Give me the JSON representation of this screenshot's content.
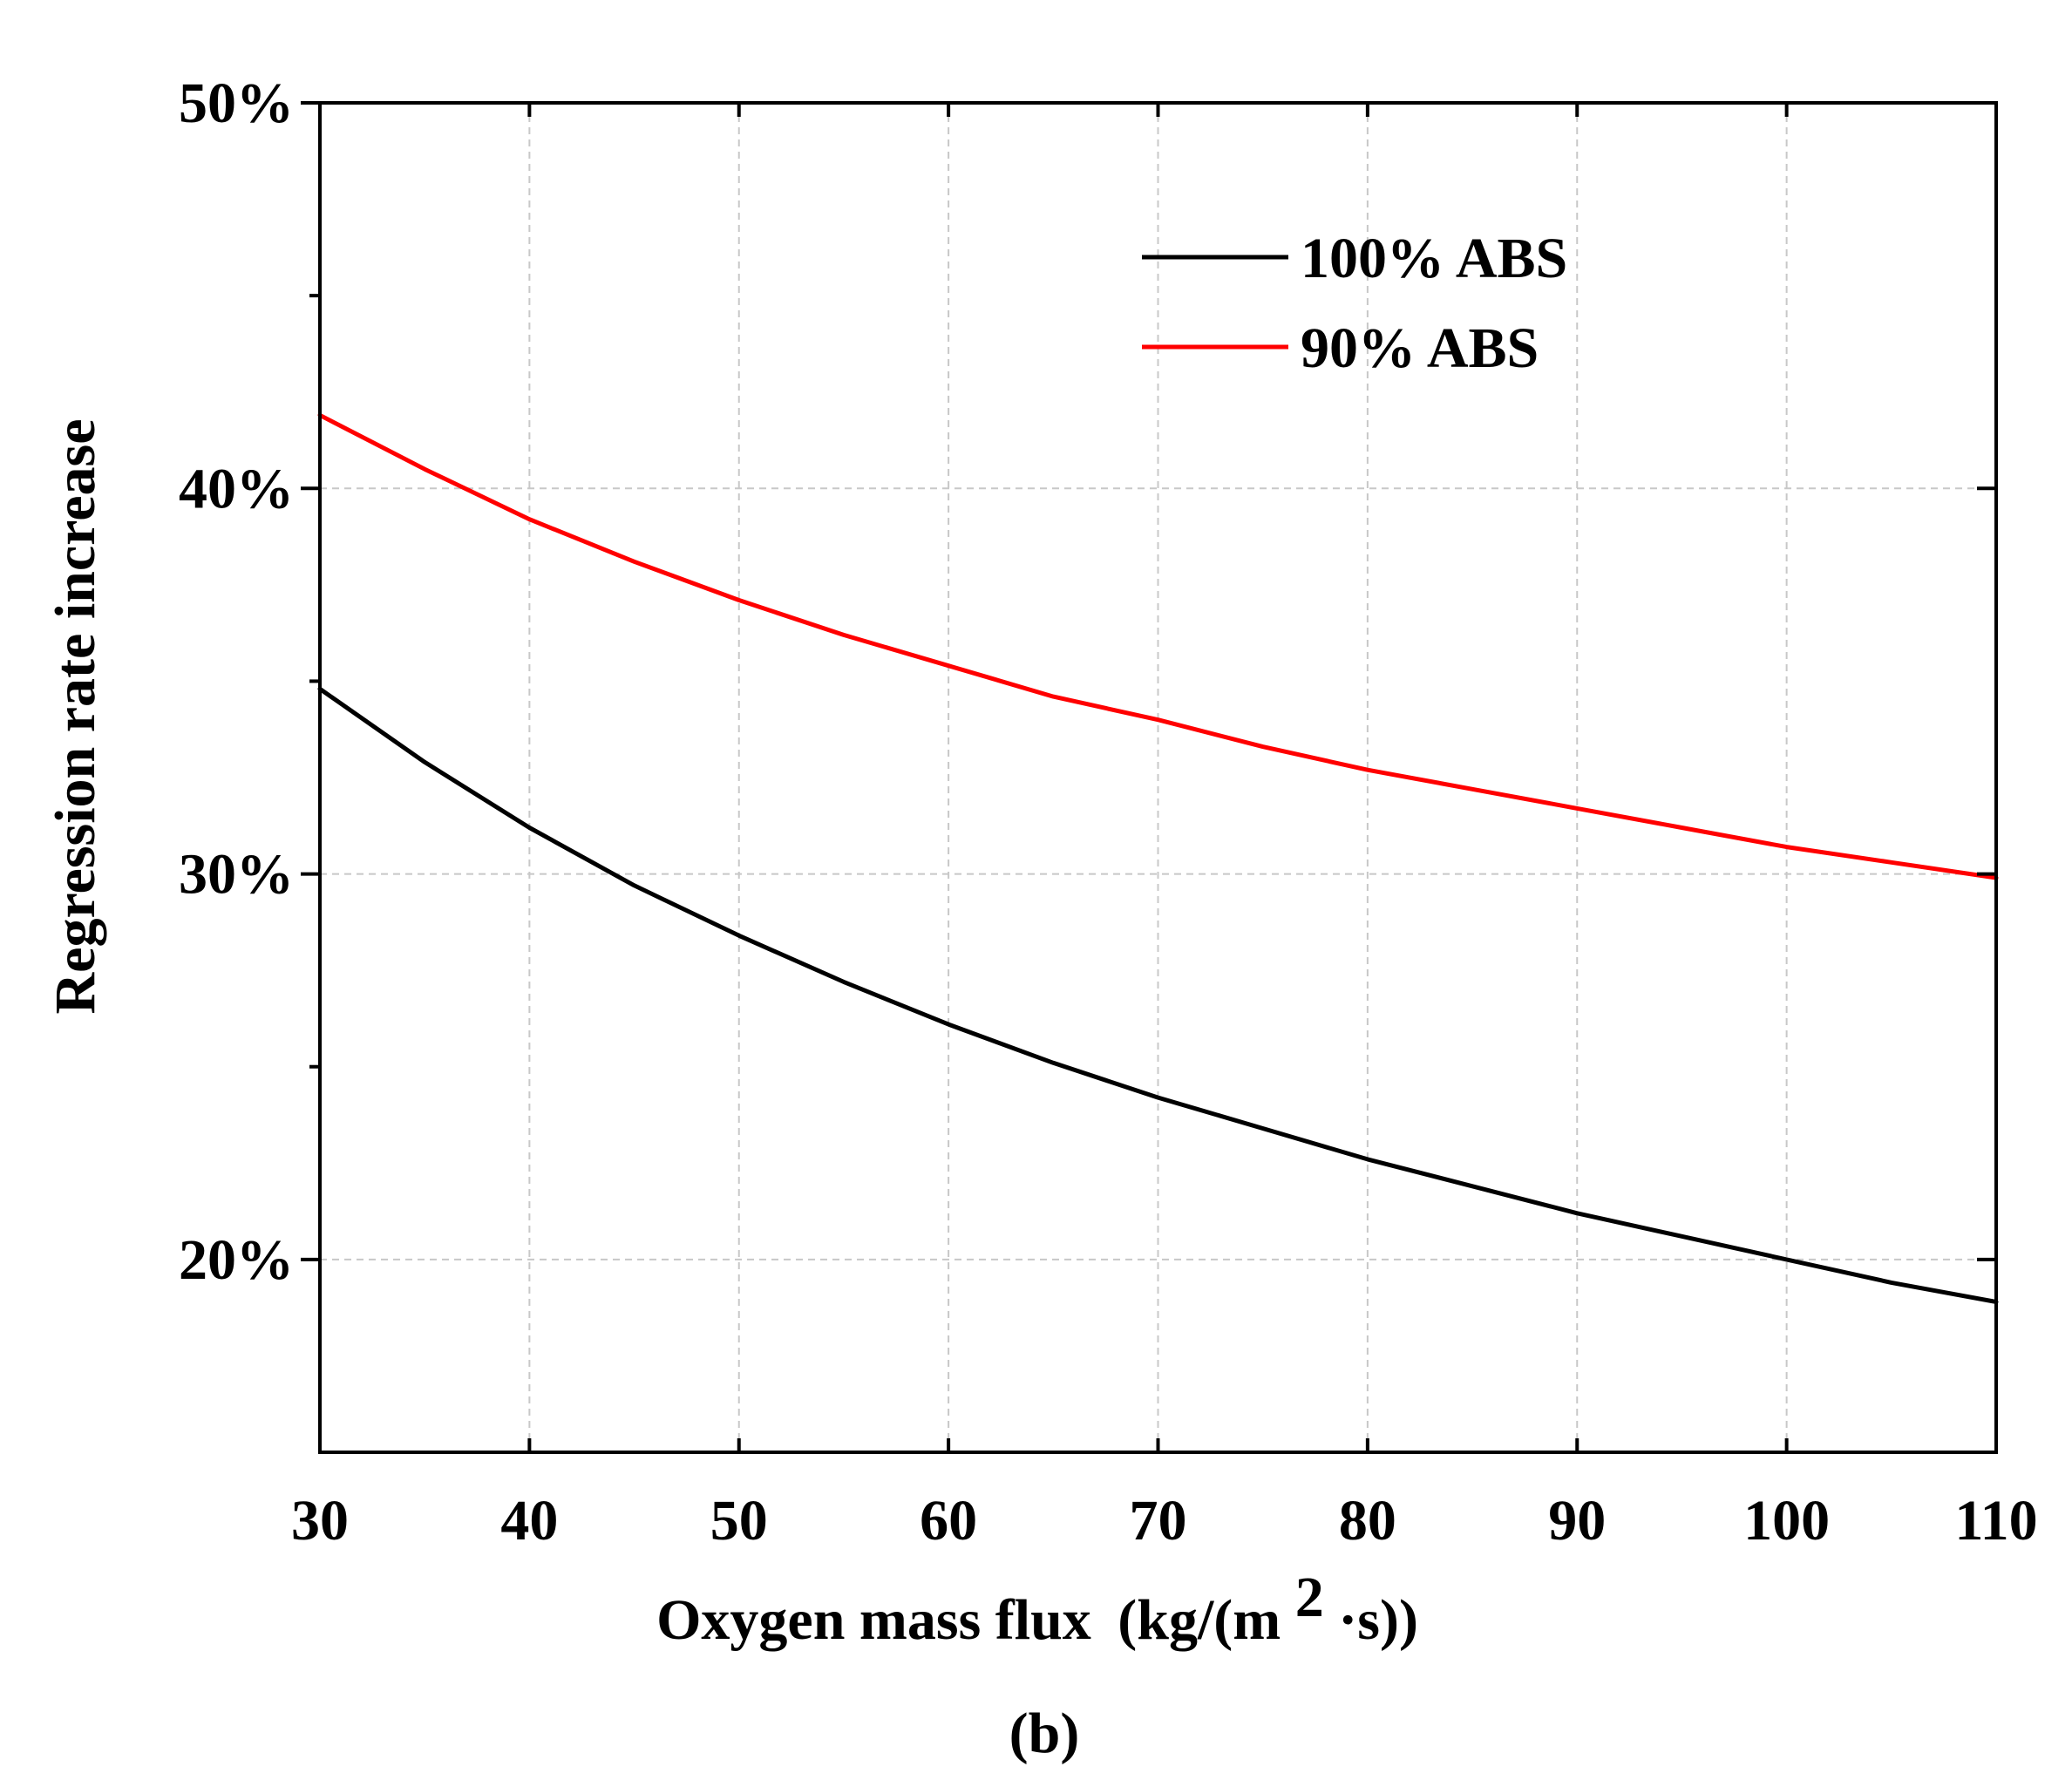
{
  "chart_data": {
    "type": "line",
    "title": "",
    "xlabel": "Oxygen mass flux",
    "xlabel_unit_prefix": "(kg/(m",
    "xlabel_unit_superscript": "2",
    "xlabel_unit_suffix": "·s))",
    "ylabel": "Regression rate increase",
    "xlim": [
      30,
      110
    ],
    "ylim": [
      15,
      50
    ],
    "x_ticks": [
      30,
      40,
      50,
      60,
      70,
      80,
      90,
      100,
      110
    ],
    "y_ticks": [
      20,
      30,
      40,
      50
    ],
    "y_tick_labels": [
      "20%",
      "30%",
      "40%",
      "50%"
    ],
    "y_minor_ticks": [
      25,
      35,
      45
    ],
    "grid": true,
    "legend_position": "top-right",
    "panel_label": "(b)",
    "series": [
      {
        "name": "100% ABS",
        "color": "#000000",
        "x": [
          30,
          35,
          40,
          45,
          50,
          55,
          60,
          65,
          70,
          75,
          80,
          85,
          90,
          95,
          100,
          105,
          110
        ],
        "y": [
          34.8,
          32.9,
          31.2,
          29.7,
          28.4,
          27.2,
          26.1,
          25.1,
          24.2,
          23.4,
          22.6,
          21.9,
          21.2,
          20.6,
          20.0,
          19.4,
          18.9
        ]
      },
      {
        "name": "90% ABS",
        "color": "#ff0000",
        "x": [
          30,
          35,
          40,
          45,
          50,
          55,
          60,
          65,
          70,
          75,
          80,
          85,
          90,
          95,
          100,
          105,
          110
        ],
        "y": [
          41.9,
          40.5,
          39.2,
          38.1,
          37.1,
          36.2,
          35.4,
          34.6,
          34.0,
          33.3,
          32.7,
          32.2,
          31.7,
          31.2,
          30.7,
          30.3,
          29.9
        ]
      }
    ]
  }
}
